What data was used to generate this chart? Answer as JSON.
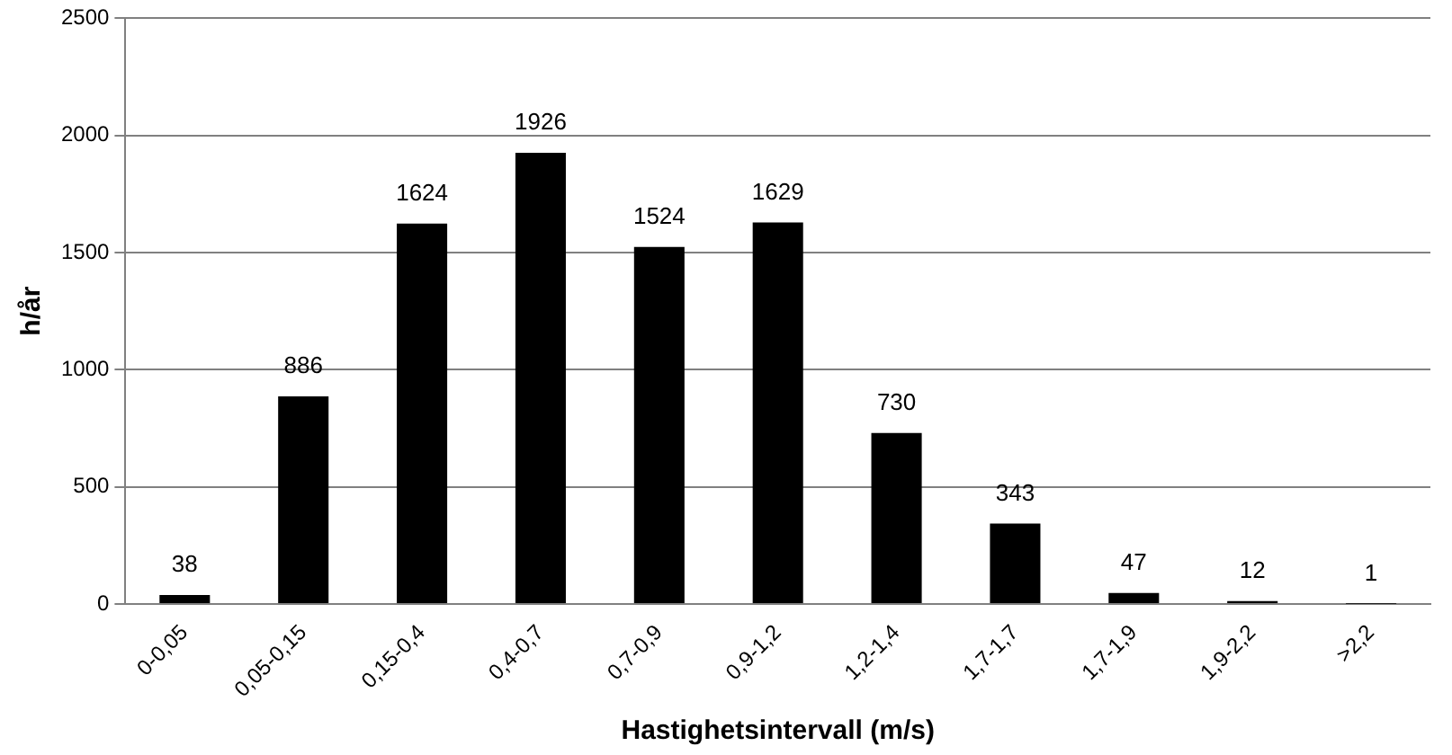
{
  "chart_data": {
    "type": "bar",
    "xlabel": "Hastighetsintervall (m/s)",
    "ylabel": "h/år",
    "categories": [
      "0-0,05",
      "0,05-0,15",
      "0,15-0,4",
      "0,4-0,7",
      "0,7-0,9",
      "0,9-1,2",
      "1,2-1,4",
      "1,7-1,7",
      "1,7-1,9",
      "1,9-2,2",
      ">2,2"
    ],
    "values": [
      38,
      886,
      1624,
      1926,
      1524,
      1629,
      730,
      343,
      47,
      12,
      1
    ],
    "color": "#000000",
    "ylim": [
      0,
      2500
    ],
    "yticks": [
      0,
      500,
      1000,
      1500,
      2000,
      2500
    ],
    "grid": "y",
    "legend": false,
    "data_labels": true
  }
}
